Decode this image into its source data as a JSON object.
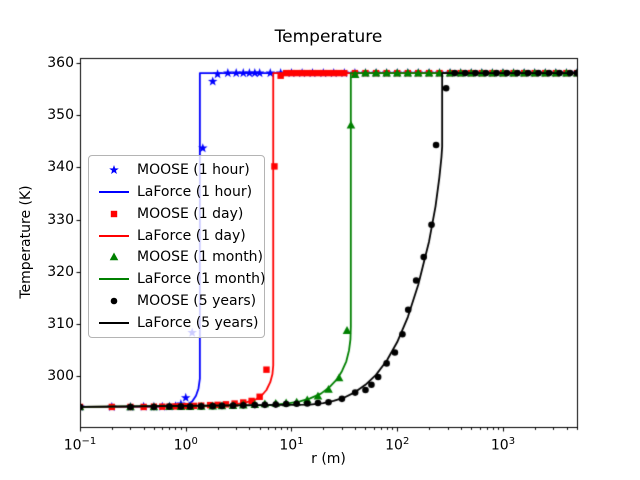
{
  "figure": {
    "title": "Temperature",
    "xlabel": "r (m)",
    "ylabel": "Temperature (K)",
    "background": "#ffffff",
    "spine_color": "#000000"
  },
  "chart_data": {
    "type": "line",
    "title": "Temperature",
    "xlabel": "r (m)",
    "ylabel": "Temperature (K)",
    "x_scale": "log",
    "y_scale": "linear",
    "xlim": [
      0.1,
      5012
    ],
    "ylim": [
      290.2,
      361.0
    ],
    "grid": false,
    "legend_position": "center left",
    "x_tick_base": "10",
    "x_ticks": [
      {
        "value": 0.1,
        "exp": "−1"
      },
      {
        "value": 1,
        "exp": "0"
      },
      {
        "value": 10,
        "exp": "1"
      },
      {
        "value": 100,
        "exp": "2"
      },
      {
        "value": 1000,
        "exp": "3"
      }
    ],
    "y_ticks": [
      300,
      310,
      320,
      330,
      340,
      350,
      360
    ],
    "baseline_temperature_K": 294.05,
    "plateau_temperature_K": 358.1,
    "front_radii_m": {
      "1 hour": 1.36,
      "1 day": 6.72,
      "1 month": 36.4,
      "5 years": 266
    },
    "series": [
      {
        "name": "MOOSE (1 hour)",
        "kind": "markers",
        "marker": "star",
        "color": "#0000ff",
        "x": [
          0.1,
          0.2,
          0.3,
          0.4,
          0.5,
          0.6,
          0.7,
          0.8,
          0.9,
          1.0,
          1.15,
          1.45,
          1.8,
          2.0,
          2.5,
          3.0,
          3.5,
          4.0,
          4.5,
          5.0,
          6.3,
          7.9,
          10,
          12.6,
          15.8,
          20,
          25.1,
          31.6,
          39.8,
          50.1,
          63.1,
          79.4,
          100,
          126,
          158,
          200,
          251,
          316,
          398,
          501,
          631,
          794,
          1000,
          1259,
          1585,
          1995,
          2512,
          3162,
          3981,
          5012
        ],
        "y": [
          294.05,
          294.05,
          294.05,
          294.1,
          294.1,
          294.1,
          294.15,
          294.2,
          294.6,
          295.8,
          308.3,
          343.7,
          356.5,
          357.9,
          358.1,
          358.1,
          358.1,
          358.1,
          358.1,
          358.1,
          358.1,
          358.1,
          358.1,
          358.1,
          358.1,
          358.1,
          358.1,
          358.1,
          358.1,
          358.1,
          358.1,
          358.1,
          358.1,
          358.1,
          358.1,
          358.1,
          358.1,
          358.1,
          358.1,
          358.1,
          358.1,
          358.1,
          358.1,
          358.1,
          358.1,
          358.1,
          358.1,
          358.1,
          358.1,
          358.1
        ]
      },
      {
        "name": "LaForce (1 hour)",
        "kind": "line",
        "marker": null,
        "color": "#0000ff",
        "x": [
          0.1,
          0.6,
          0.9,
          1.05,
          1.15,
          1.25,
          1.32,
          1.36,
          1.36,
          5012
        ],
        "y": [
          294.05,
          294.1,
          294.3,
          294.6,
          295.1,
          296.2,
          297.6,
          299.5,
          358.1,
          358.1
        ]
      },
      {
        "name": "MOOSE (1 day)",
        "kind": "markers",
        "marker": "square",
        "color": "#ff0000",
        "x": [
          0.1,
          0.2,
          0.3,
          0.4,
          0.5,
          0.6,
          0.7,
          0.8,
          0.9,
          1.0,
          1.2,
          1.4,
          1.7,
          2.0,
          2.4,
          2.9,
          3.5,
          4.2,
          5.0,
          5.8,
          6.9,
          7.9,
          8.9,
          10,
          11.2,
          12.6,
          14.1,
          15.8,
          17.8,
          20,
          22.4,
          25.1,
          28.2,
          31.6,
          39.8,
          50.1,
          63.1,
          79.4,
          100,
          126,
          158,
          200,
          251,
          316,
          398,
          501,
          631,
          794,
          1000,
          1259,
          1585,
          1995,
          2512,
          3162,
          3981,
          5012
        ],
        "y": [
          294.05,
          294.05,
          294.05,
          294.05,
          294.1,
          294.1,
          294.1,
          294.15,
          294.15,
          294.2,
          294.25,
          294.3,
          294.4,
          294.45,
          294.55,
          294.7,
          294.9,
          295.2,
          296.0,
          301.2,
          340.2,
          357.6,
          358.1,
          358.1,
          358.1,
          358.1,
          358.1,
          358.1,
          358.1,
          358.1,
          358.1,
          358.1,
          358.1,
          358.1,
          358.1,
          358.1,
          358.1,
          358.1,
          358.1,
          358.1,
          358.1,
          358.1,
          358.1,
          358.1,
          358.1,
          358.1,
          358.1,
          358.1,
          358.1,
          358.1,
          358.1,
          358.1,
          358.1,
          358.1,
          358.1,
          358.1
        ]
      },
      {
        "name": "LaForce (1 day)",
        "kind": "line",
        "marker": null,
        "color": "#ff0000",
        "x": [
          0.1,
          1.5,
          2.5,
          3.5,
          4.5,
          5.2,
          5.8,
          6.3,
          6.6,
          6.72,
          6.72,
          5012
        ],
        "y": [
          294.05,
          294.15,
          294.4,
          294.8,
          295.4,
          296.2,
          297.3,
          298.8,
          300.3,
          302.0,
          358.1,
          358.1
        ]
      },
      {
        "name": "MOOSE (1 month)",
        "kind": "markers",
        "marker": "triangle",
        "color": "#008000",
        "x": [
          0.1,
          0.3,
          0.5,
          0.7,
          0.9,
          1.1,
          1.4,
          1.8,
          2.2,
          2.8,
          3.5,
          4.5,
          5.6,
          7.1,
          8.9,
          11.2,
          14.1,
          17.8,
          22.4,
          28.2,
          33.5,
          36.5,
          40,
          50.1,
          63.1,
          79.4,
          100,
          126,
          158,
          200,
          251,
          316,
          398,
          501,
          631,
          794,
          1000,
          1259,
          1585,
          1995,
          2512,
          3162,
          3981,
          5012
        ],
        "y": [
          294.05,
          294.05,
          294.05,
          294.1,
          294.1,
          294.1,
          294.15,
          294.2,
          294.25,
          294.3,
          294.4,
          294.5,
          294.6,
          294.7,
          294.8,
          294.95,
          295.4,
          296.1,
          297.4,
          299.6,
          308.7,
          348.1,
          357.8,
          358.1,
          358.1,
          358.1,
          358.1,
          358.1,
          358.1,
          358.1,
          358.1,
          358.1,
          358.1,
          358.1,
          358.1,
          358.1,
          358.1,
          358.1,
          358.1,
          358.1,
          358.1,
          358.1,
          358.1,
          358.1
        ]
      },
      {
        "name": "LaForce (1 month)",
        "kind": "line",
        "marker": null,
        "color": "#008000",
        "x": [
          0.1,
          6,
          9,
          12,
          15,
          19,
          23,
          27,
          30,
          33,
          35,
          36.1,
          36.4,
          36.4,
          5012
        ],
        "y": [
          294.05,
          294.4,
          294.7,
          295.1,
          295.7,
          296.6,
          297.9,
          299.4,
          300.9,
          302.8,
          304.9,
          307.0,
          309.5,
          358.1,
          358.1
        ]
      },
      {
        "name": "MOOSE (5 years)",
        "kind": "markers",
        "marker": "circle",
        "color": "#000000",
        "x": [
          0.1,
          0.3,
          0.5,
          0.7,
          0.9,
          1.1,
          1.4,
          1.8,
          2.2,
          2.8,
          3.5,
          4.5,
          5.6,
          7.1,
          8.9,
          11.2,
          14.1,
          17.8,
          22.4,
          30,
          40,
          50.1,
          57,
          66,
          79.4,
          95,
          112,
          127,
          151,
          178,
          211,
          233,
          290,
          350,
          440,
          550,
          690,
          870,
          1090,
          1370,
          1730,
          2170,
          2730,
          3430,
          4310,
          5012
        ],
        "y": [
          294.05,
          294.05,
          294.05,
          294.1,
          294.1,
          294.1,
          294.15,
          294.2,
          294.25,
          294.3,
          294.35,
          294.4,
          294.45,
          294.5,
          294.6,
          294.65,
          294.7,
          294.8,
          294.95,
          295.6,
          296.8,
          297.3,
          298.3,
          299.8,
          302.4,
          304.5,
          308.0,
          312.7,
          318.3,
          322.8,
          329.0,
          344.3,
          355.2,
          358.1,
          358.1,
          358.1,
          358.1,
          358.1,
          358.1,
          358.1,
          358.1,
          358.1,
          358.1,
          358.1,
          358.1,
          358.1
        ]
      },
      {
        "name": "LaForce (5 years)",
        "kind": "line",
        "marker": null,
        "color": "#000000",
        "x": [
          0.1,
          15,
          20,
          25,
          32,
          40,
          50,
          63,
          80,
          100,
          126,
          158,
          200,
          230,
          250,
          262,
          266,
          266,
          5012
        ],
        "y": [
          294.05,
          294.5,
          294.8,
          295.2,
          295.9,
          296.9,
          298.3,
          300.2,
          303.0,
          306.5,
          311.3,
          317.5,
          325.8,
          332.5,
          338.0,
          342.0,
          344.0,
          358.1,
          358.1
        ]
      }
    ]
  }
}
